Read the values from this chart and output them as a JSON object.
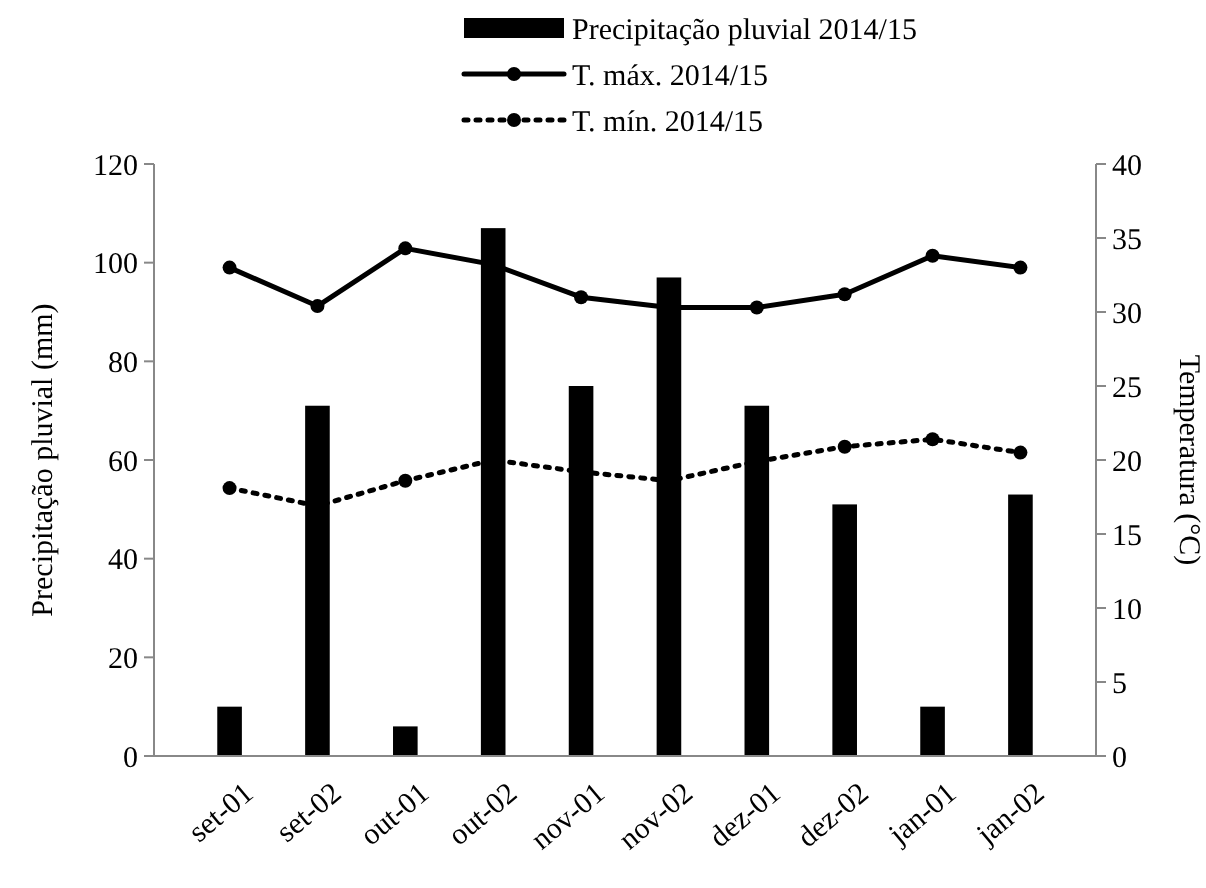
{
  "chart_data": {
    "type": "bar",
    "categories": [
      "set-01",
      "set-02",
      "out-01",
      "out-02",
      "nov-01",
      "nov-02",
      "dez-01",
      "dez-02",
      "jan-01",
      "jan-02"
    ],
    "ylabel": "Precipitação pluvial (mm)",
    "y2label": "Temperatura (°C)",
    "ylim": [
      0,
      120
    ],
    "yticks": [
      0,
      20,
      40,
      60,
      80,
      100,
      120
    ],
    "y2lim": [
      0,
      40
    ],
    "y2ticks": [
      0,
      5,
      10,
      15,
      20,
      25,
      30,
      35,
      40
    ],
    "legend": "top",
    "grid": false,
    "marker": "circle",
    "series": [
      {
        "name": "Precipitação pluvial 2014/15",
        "color": "#000000",
        "values": [
          10,
          71,
          6,
          107,
          75,
          97,
          71,
          51,
          10,
          53
        ]
      },
      {
        "name": "T. máx. 2014/15",
        "type": "line",
        "axis": "y2",
        "color": "#000000",
        "line_style": "solid",
        "values": [
          33,
          30.4,
          34.3,
          33.2,
          31,
          30.3,
          30.3,
          31.2,
          33.8,
          33
        ]
      },
      {
        "name": "T. mín. 2014/15",
        "type": "line",
        "axis": "y2",
        "color": "#000000",
        "line_style": "dotted",
        "values": [
          18.1,
          16.9,
          18.6,
          20,
          19.2,
          18.6,
          19.9,
          20.9,
          21.4,
          20.5
        ]
      }
    ]
  }
}
